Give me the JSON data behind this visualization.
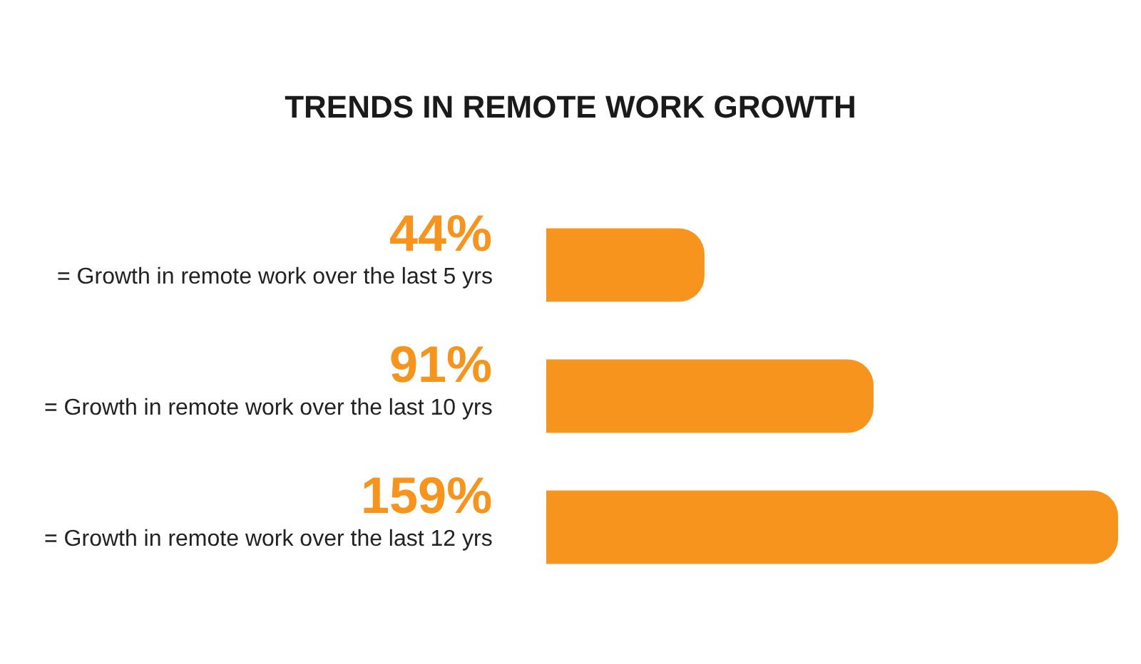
{
  "chart_data": {
    "type": "bar",
    "orientation": "horizontal",
    "title": "TRENDS IN REMOTE WORK GROWTH",
    "categories": [
      "= Growth in remote work over the last 5 yrs",
      "= Growth in remote work over the last 10 yrs",
      "= Growth in remote work over the last 12 yrs"
    ],
    "values": [
      44,
      91,
      159
    ],
    "value_labels": [
      "44%",
      "91%",
      "159%"
    ],
    "color": "#f7941d"
  }
}
